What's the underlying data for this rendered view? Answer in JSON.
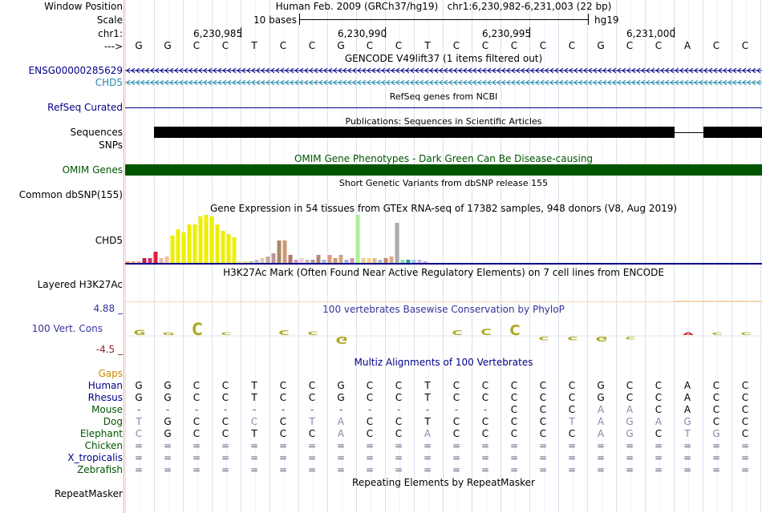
{
  "header": {
    "window_position_label": "Window Position",
    "window_position_value": "Human Feb. 2009 (GRCh37/hg19)   chr1:6,230,982-6,231,003 (22 bp)",
    "scale_label": "Scale",
    "scale_text": "10 bases",
    "scale_db": "hg19",
    "chrom_label": "chr1:",
    "arrow_label": "--->",
    "positions": [
      "6,230,985",
      "6,230,990",
      "6,230,995",
      "6,231,000"
    ]
  },
  "sequence": [
    "G",
    "G",
    "C",
    "C",
    "T",
    "C",
    "C",
    "G",
    "C",
    "C",
    "T",
    "C",
    "C",
    "C",
    "C",
    "C",
    "G",
    "C",
    "C",
    "A",
    "C",
    "C"
  ],
  "tracks": {
    "gencode": {
      "title": "GENCODE V49lift37 (1 items filtered out)",
      "items": [
        "ENSG00000285629",
        "CHD5"
      ]
    },
    "refseq": {
      "label": "RefSeq Curated",
      "title": "RefSeq genes from NCBI"
    },
    "publications": {
      "label": "Sequences",
      "title": "Publications: Sequences in Scientific Articles"
    },
    "snps": {
      "label": "SNPs"
    },
    "omim": {
      "label": "OMIM Genes",
      "title": "OMIM Gene Phenotypes - Dark Green Can Be Disease-causing"
    },
    "dbsnp": {
      "label": "Common dbSNP(155)",
      "title": "Short Genetic Variants from dbSNP release 155"
    },
    "gtex": {
      "label": "CHD5",
      "title": "Gene Expression in 54 tissues from GTEx RNA-seq of 17382 samples, 948 donors (V8, Aug 2019)",
      "values": [
        2,
        2,
        2,
        6,
        6,
        14,
        6,
        8,
        34,
        42,
        38,
        48,
        48,
        58,
        60,
        58,
        48,
        40,
        36,
        32,
        2,
        2,
        2,
        4,
        6,
        8,
        12,
        28,
        28,
        10,
        4,
        6,
        4,
        4,
        10,
        4,
        10,
        6,
        10,
        4,
        6,
        60,
        6,
        6,
        6,
        4,
        6,
        8,
        50,
        4,
        4,
        4,
        4,
        2
      ],
      "colors": [
        "#ff9966",
        "#ffaa77",
        "#eeaa99",
        "#bb2255",
        "#cc3366",
        "#dd2233",
        "#ddbbaa",
        "#ffbb99",
        "#eeee00",
        "#eeee00",
        "#eeee00",
        "#eeee00",
        "#eeee00",
        "#eeee00",
        "#eeee00",
        "#eeee00",
        "#eeee00",
        "#eeee00",
        "#eeee00",
        "#eeee00",
        "#ffdd99",
        "#ffdd66",
        "#bbbbbb",
        "#ccbbcc",
        "#ddccbb",
        "#ccaa99",
        "#bb9999",
        "#aa8866",
        "#cc9977",
        "#aa7766",
        "#cc99bb",
        "#eeccdd",
        "#ccbbaa",
        "#aa9988",
        "#bb8877",
        "#99bbdd",
        "#dd9988",
        "#cc9966",
        "#ccaa88",
        "#aaaaee",
        "#cc99aa",
        "#aaee99",
        "#eecc99",
        "#ffcc88",
        "#ddbb99",
        "#aabbcc",
        "#cc8866",
        "#ddaa88",
        "#aaaaaa",
        "#99ddaa",
        "#3399aa",
        "#99ccdd",
        "#bbbbee",
        "#cc99cc"
      ]
    },
    "h3k27ac": {
      "label": "Layered H3K27Ac",
      "title": "H3K27Ac Mark (Often Found Near Active Regulatory Elements) on 7 cell lines from ENCODE"
    },
    "phylop": {
      "label": "100 Vert. Cons",
      "title": "100 vertebrates Basewise Conservation by PhyloP",
      "max": "4.88 _",
      "min": "-4.5 _"
    },
    "multiz": {
      "title": "Multiz Alignments of 100 Vertebrates",
      "gaps_label": "Gaps",
      "species": [
        {
          "name": "Human",
          "bases": [
            "G",
            "G",
            "C",
            "C",
            "T",
            "C",
            "C",
            "G",
            "C",
            "C",
            "T",
            "C",
            "C",
            "C",
            "C",
            "C",
            "G",
            "C",
            "C",
            "A",
            "C",
            "C"
          ]
        },
        {
          "name": "Rhesus",
          "bases": [
            "G",
            "G",
            "C",
            "C",
            "T",
            "C",
            "C",
            "G",
            "C",
            "C",
            "T",
            "C",
            "C",
            "C",
            "C",
            "C",
            "G",
            "C",
            "C",
            "A",
            "C",
            "C"
          ]
        },
        {
          "name": "Mouse",
          "bases": [
            "-",
            "-",
            "-",
            "-",
            "-",
            "-",
            "-",
            "-",
            "-",
            "-",
            "-",
            "-",
            "-",
            "C",
            "C",
            "C",
            "A",
            "A",
            "C",
            "A",
            "C",
            "C"
          ]
        },
        {
          "name": "Dog",
          "bases": [
            "T",
            "G",
            "C",
            "C",
            "C",
            "C",
            "T",
            "A",
            "C",
            "C",
            "T",
            "C",
            "C",
            "C",
            "C",
            "T",
            "A",
            "G",
            "A",
            "G",
            "C",
            "C"
          ]
        },
        {
          "name": "Elephant",
          "bases": [
            "C",
            "G",
            "C",
            "C",
            "T",
            "C",
            "C",
            "A",
            "C",
            "C",
            "A",
            "C",
            "C",
            "C",
            "C",
            "C",
            "A",
            "G",
            "C",
            "T",
            "G",
            "C"
          ]
        },
        {
          "name": "Chicken",
          "bases": [
            "=",
            "=",
            "=",
            "=",
            "=",
            "=",
            "=",
            "=",
            "=",
            "=",
            "=",
            "=",
            "=",
            "=",
            "=",
            "=",
            "=",
            "=",
            "=",
            "=",
            "=",
            "="
          ]
        },
        {
          "name": "X_tropicalis",
          "bases": [
            "=",
            "=",
            "=",
            "=",
            "=",
            "=",
            "=",
            "=",
            "=",
            "=",
            "=",
            "=",
            "=",
            "=",
            "=",
            "=",
            "=",
            "=",
            "=",
            "=",
            "=",
            "="
          ]
        },
        {
          "name": "Zebrafish",
          "bases": [
            "=",
            "=",
            "=",
            "=",
            "=",
            "=",
            "=",
            "=",
            "=",
            "=",
            "=",
            "=",
            "=",
            "=",
            "=",
            "=",
            "=",
            "=",
            "=",
            "=",
            "=",
            "="
          ]
        }
      ]
    },
    "repeatmasker": {
      "label": "RepeatMasker",
      "title": "Repeating Elements by RepeatMasker"
    }
  },
  "colors": {
    "navy": "#000088",
    "omim_green": "#005500",
    "gencode_teal": "#2288aa",
    "gaps_orange": "#cc8800",
    "phylop_blue": "#333399",
    "phylop_red": "#882222"
  }
}
